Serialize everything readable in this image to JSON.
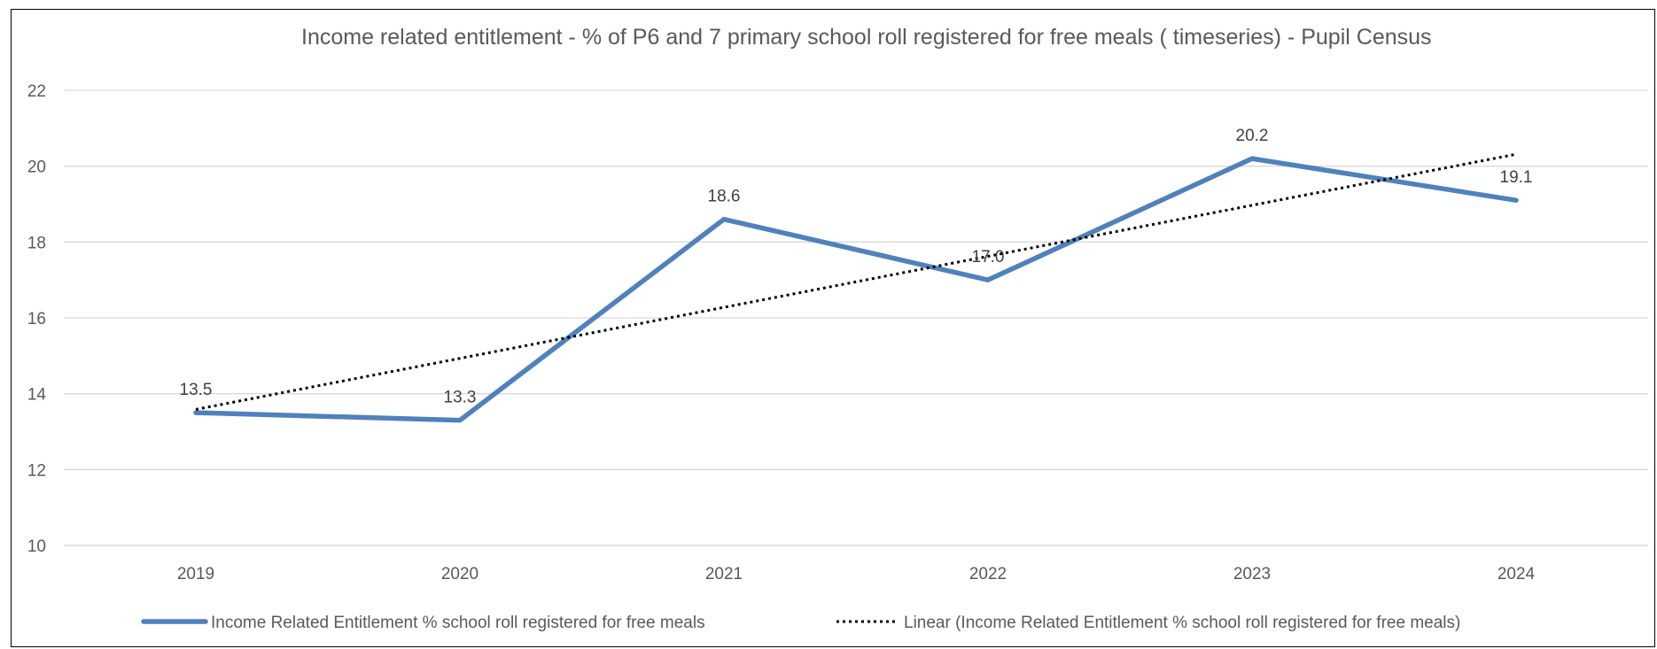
{
  "chart_data": {
    "type": "line",
    "title": "Income related entitlement -  % of P6 and 7 primary school roll registered for free meals ( timeseries) - Pupil Census",
    "categories": [
      "2019",
      "2020",
      "2021",
      "2022",
      "2023",
      "2024"
    ],
    "series": [
      {
        "name": "Income Related Entitlement % school roll registered for free meals",
        "values": [
          13.5,
          13.3,
          18.6,
          17.0,
          20.2,
          19.1
        ],
        "data_labels": [
          "13.5",
          "13.3",
          "18.6",
          "17.0",
          "20.2",
          "19.1"
        ],
        "color": "#4F81BD",
        "style": "solid"
      },
      {
        "name": "Linear (Income Related Entitlement % school roll registered for free meals)",
        "trendline_of": 0,
        "style": "dotted",
        "color": "#000000"
      }
    ],
    "y_ticks": [
      "10",
      "12",
      "14",
      "16",
      "18",
      "20",
      "22"
    ],
    "ylim": [
      10,
      22
    ],
    "grid": true,
    "legend": "bottom",
    "xlabel": "",
    "ylabel": ""
  }
}
